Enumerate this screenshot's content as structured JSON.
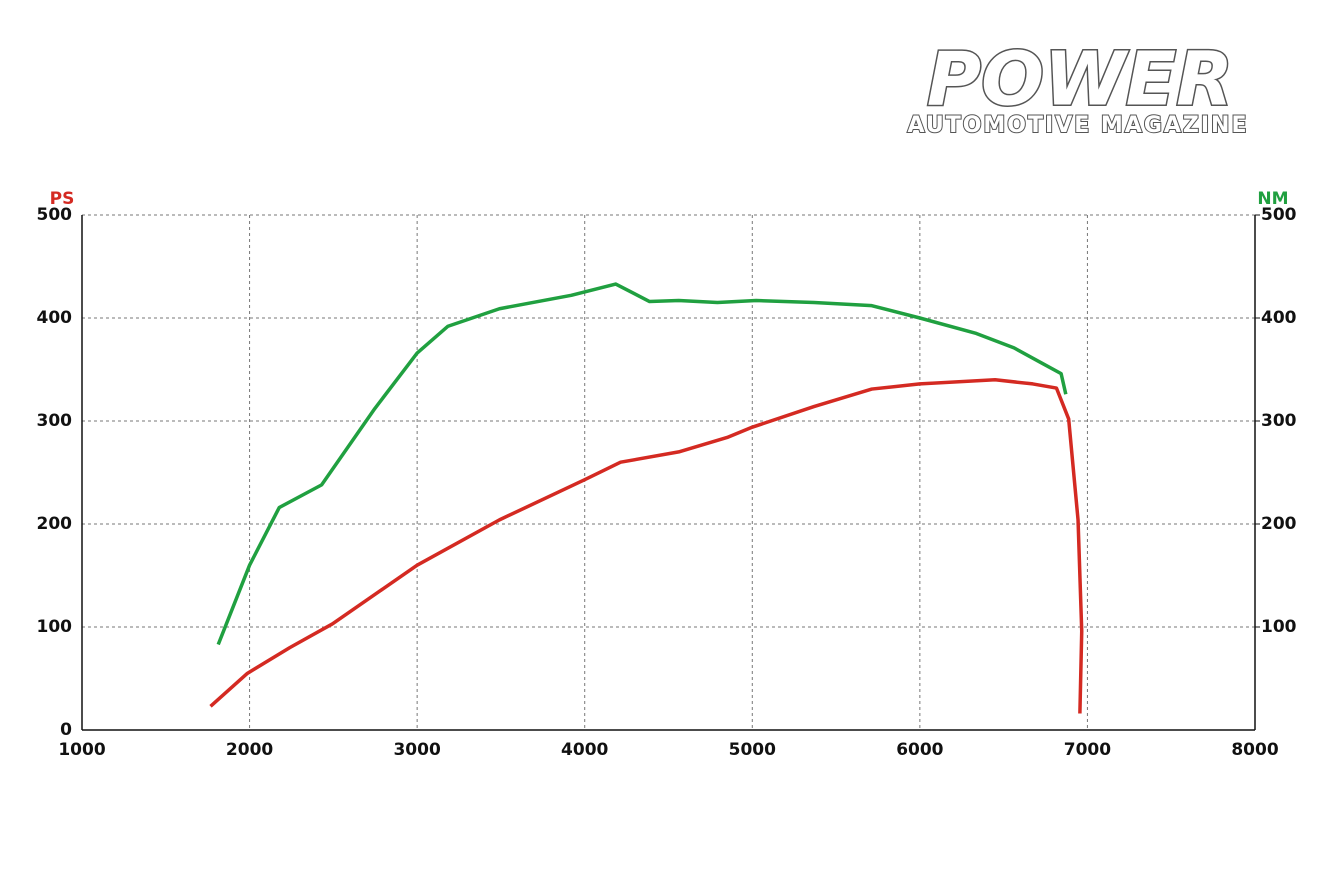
{
  "logo": {
    "title": "POWER",
    "subtitle": "AUTOMOTIVE MAGAZINE"
  },
  "chart_data": {
    "type": "line",
    "y_label": "PS",
    "y2_label": "NM",
    "xlim": [
      1000,
      8000
    ],
    "xticks": [
      1000,
      2000,
      3000,
      4000,
      5000,
      6000,
      7000,
      8000
    ],
    "ylim": [
      0,
      500
    ],
    "yticks": [
      0,
      100,
      200,
      300,
      400,
      500
    ],
    "y2lim": [
      0,
      500
    ],
    "y2ticks": [
      100,
      200,
      300,
      400,
      500
    ],
    "grid": true,
    "series": [
      {
        "name": "NM",
        "color": "#20a040",
        "axis": "y2",
        "x": [
          1813,
          2000,
          2177,
          2430,
          2747,
          3000,
          3184,
          3491,
          3920,
          4185,
          4387,
          4561,
          4792,
          5023,
          5368,
          5713,
          6000,
          6337,
          6562,
          6730,
          6843,
          6871
        ],
        "values": [
          83,
          160,
          216,
          238,
          312,
          366,
          392,
          409,
          422,
          433,
          416,
          417,
          415,
          417,
          415,
          412,
          400,
          385,
          371,
          356,
          346,
          326
        ]
      },
      {
        "name": "PS",
        "color": "#d42a22",
        "x": [
          1767,
          1987,
          2240,
          2494,
          3000,
          3491,
          4000,
          4214,
          4561,
          4850,
          5000,
          5368,
          5713,
          6000,
          6449,
          6674,
          6815,
          6888,
          6944,
          6966,
          6955
        ],
        "values": [
          23,
          55,
          80,
          103,
          160,
          204,
          243,
          260,
          270,
          284,
          294,
          314,
          331,
          336,
          340,
          336,
          332,
          302,
          204,
          96,
          16
        ]
      }
    ]
  }
}
